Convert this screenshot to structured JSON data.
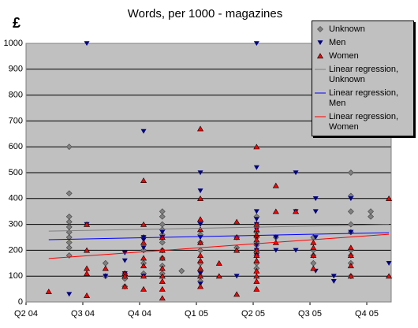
{
  "chart_data": {
    "type": "scatter",
    "title": "Words, per 1000 - magazines",
    "y_label": "£",
    "xlim": [
      0,
      6.43
    ],
    "ylim": [
      0,
      1000
    ],
    "xticks": [
      {
        "value": 0,
        "label": "Q2 04"
      },
      {
        "value": 1,
        "label": "Q3 04"
      },
      {
        "value": 2,
        "label": "Q4 04"
      },
      {
        "value": 3,
        "label": "Q1 05"
      },
      {
        "value": 4,
        "label": "Q2 05"
      },
      {
        "value": 5,
        "label": "Q3 05"
      },
      {
        "value": 6,
        "label": "Q4 05"
      }
    ],
    "yticks": [
      0,
      100,
      200,
      300,
      400,
      500,
      600,
      700,
      800,
      900,
      1000
    ],
    "grid": true,
    "legend": "right",
    "series": [
      {
        "name": "Unknown",
        "color": "#808080",
        "marker": "diamond",
        "x": [
          0.76,
          0.76,
          0.76,
          0.76,
          0.76,
          0.76,
          0.76,
          0.76,
          0.76,
          0.76,
          1.4,
          1.4,
          1.74,
          1.74,
          1.74,
          1.74,
          2.07,
          2.07,
          2.07,
          2.07,
          2.4,
          2.4,
          2.4,
          2.4,
          2.4,
          2.4,
          2.4,
          2.4,
          2.4,
          2.4,
          2.74,
          3.07,
          3.07,
          3.07,
          3.07,
          3.07,
          3.07,
          3.07,
          3.07,
          3.71,
          3.71,
          4.06,
          4.06,
          4.06,
          4.06,
          4.06,
          4.06,
          4.06,
          4.06,
          4.06,
          4.4,
          5.06,
          5.06,
          5.06,
          5.06,
          5.72,
          5.72,
          5.72,
          5.72,
          5.72,
          5.72,
          5.72,
          5.72,
          5.72,
          6.07,
          6.07
        ],
        "values": [
          600,
          420,
          330,
          310,
          290,
          270,
          250,
          230,
          210,
          180,
          150,
          100,
          110,
          90,
          60,
          100,
          250,
          200,
          150,
          110,
          350,
          330,
          300,
          280,
          260,
          230,
          200,
          170,
          140,
          110,
          120,
          310,
          260,
          230,
          200,
          150,
          120,
          100,
          80,
          250,
          210,
          330,
          300,
          270,
          250,
          220,
          200,
          180,
          150,
          130,
          250,
          250,
          200,
          180,
          150,
          500,
          410,
          350,
          300,
          270,
          200,
          180,
          150,
          100,
          350,
          330
        ]
      },
      {
        "name": "Men",
        "color": "#000080",
        "marker": "down",
        "x": [
          0.76,
          1.07,
          1.07,
          1.4,
          1.74,
          1.74,
          1.74,
          2.07,
          2.07,
          2.07,
          2.07,
          2.07,
          2.4,
          2.4,
          3.07,
          3.07,
          3.07,
          3.07,
          3.07,
          3.07,
          3.71,
          4.06,
          4.06,
          4.06,
          4.06,
          4.06,
          4.06,
          4.06,
          4.06,
          4.06,
          4.06,
          4.4,
          4.4,
          4.75,
          4.75,
          4.75,
          5.1,
          5.1,
          5.1,
          5.1,
          5.42,
          5.42,
          5.72,
          5.72,
          6.39
        ],
        "values": [
          30,
          1000,
          300,
          100,
          190,
          160,
          110,
          660,
          250,
          240,
          210,
          100,
          270,
          250,
          500,
          430,
          300,
          250,
          110,
          70,
          100,
          1000,
          520,
          350,
          320,
          300,
          280,
          250,
          220,
          200,
          180,
          250,
          200,
          500,
          350,
          200,
          400,
          350,
          250,
          120,
          100,
          80,
          400,
          270,
          150
        ]
      },
      {
        "name": "Women",
        "color": "#ff0000",
        "marker": "up",
        "x": [
          0.4,
          1.07,
          1.07,
          1.07,
          1.07,
          1.07,
          1.4,
          1.74,
          1.74,
          1.74,
          2.07,
          2.07,
          2.07,
          2.07,
          2.07,
          2.07,
          2.07,
          2.4,
          2.4,
          2.4,
          2.4,
          2.4,
          2.4,
          2.4,
          2.4,
          3.07,
          3.07,
          3.07,
          3.07,
          3.07,
          3.07,
          3.07,
          3.07,
          3.07,
          3.07,
          3.4,
          3.4,
          3.71,
          3.71,
          3.71,
          3.71,
          4.06,
          4.06,
          4.06,
          4.06,
          4.06,
          4.06,
          4.06,
          4.06,
          4.06,
          4.06,
          4.06,
          4.06,
          4.4,
          4.4,
          4.4,
          4.75,
          5.06,
          5.06,
          5.06,
          5.06,
          5.72,
          5.72,
          5.72,
          5.72,
          6.39,
          6.39
        ],
        "values": [
          40,
          300,
          200,
          130,
          110,
          25,
          130,
          110,
          100,
          60,
          470,
          300,
          230,
          170,
          140,
          100,
          50,
          250,
          200,
          170,
          130,
          100,
          80,
          50,
          15,
          670,
          400,
          320,
          280,
          230,
          180,
          160,
          130,
          100,
          60,
          100,
          150,
          310,
          250,
          200,
          30,
          600,
          300,
          280,
          260,
          240,
          200,
          180,
          160,
          120,
          100,
          80,
          50,
          450,
          350,
          230,
          350,
          230,
          210,
          180,
          130,
          210,
          180,
          140,
          100,
          400,
          100
        ]
      },
      {
        "name": "Linear regression, Unknown",
        "color": "#808080",
        "marker": "line",
        "x": [
          0.4,
          6.39
        ],
        "values": [
          274,
          299
        ]
      },
      {
        "name": "Linear regression, Men",
        "color": "#0000ff",
        "marker": "line",
        "x": [
          0.4,
          6.39
        ],
        "values": [
          241,
          268
        ]
      },
      {
        "name": "Linear regression, Women",
        "color": "#ff0000",
        "marker": "line",
        "x": [
          0.4,
          6.39
        ],
        "values": [
          168,
          262
        ]
      }
    ]
  }
}
